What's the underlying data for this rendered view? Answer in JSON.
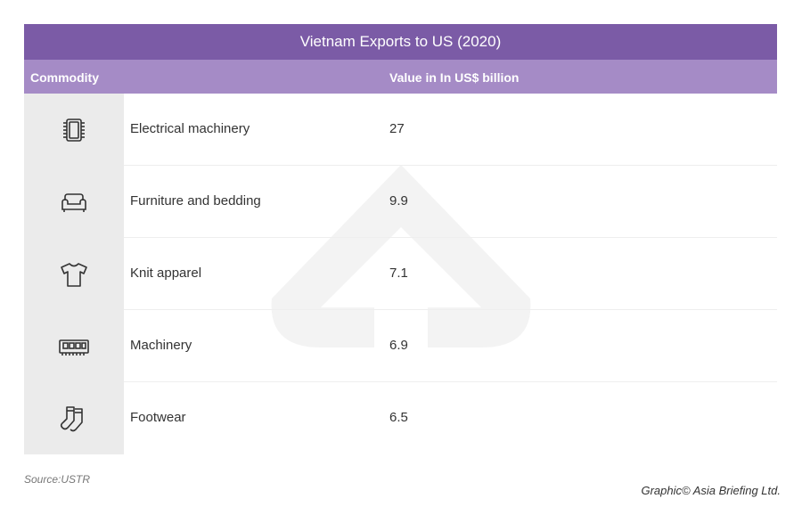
{
  "chart_data": {
    "type": "table",
    "title": "Vietnam Exports to US (2020)",
    "columns": [
      "Commodity",
      "Value in In US$ billion"
    ],
    "rows": [
      {
        "icon": "chip-icon",
        "commodity": "Electrical machinery",
        "value": "27"
      },
      {
        "icon": "sofa-icon",
        "commodity": "Furniture and bedding",
        "value": "9.9"
      },
      {
        "icon": "tshirt-icon",
        "commodity": "Knit apparel",
        "value": "7.1"
      },
      {
        "icon": "ram-module-icon",
        "commodity": "Machinery",
        "value": "6.9"
      },
      {
        "icon": "socks-icon",
        "commodity": "Footwear",
        "value": "6.5"
      }
    ]
  },
  "footer": {
    "source": "Source:USTR",
    "credit": "Graphic© Asia Briefing Ltd."
  },
  "colors": {
    "title_bar": "#7b5ba6",
    "header_row": "#a58bc6",
    "icon_cell": "#ebebeb",
    "watermark": "#f2f2f2"
  }
}
